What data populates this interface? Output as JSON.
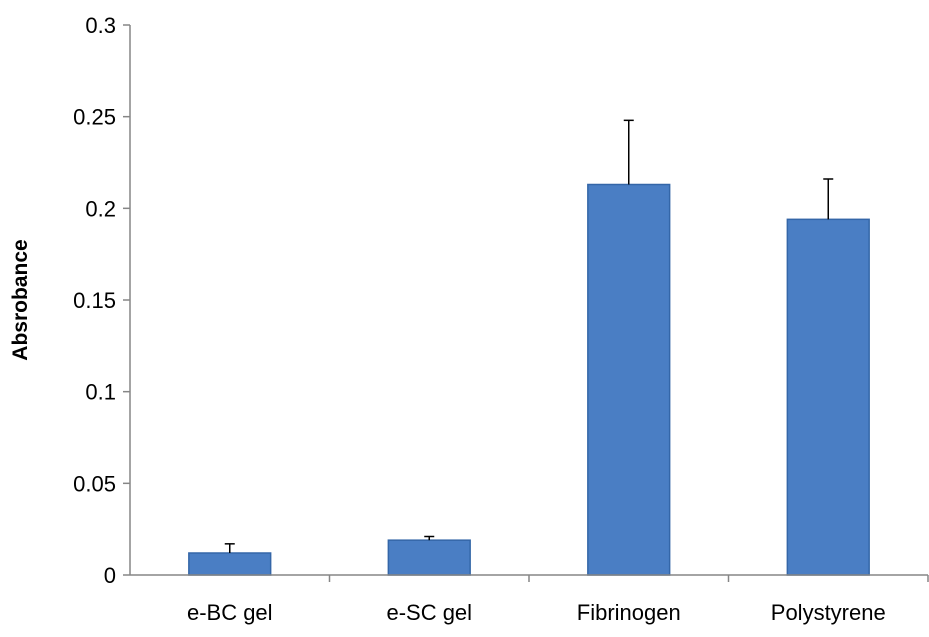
{
  "colors": {
    "bar_fill": "#4A7EC4",
    "bar_stroke": "#3466A8",
    "axis": "#868686",
    "error_bar": "#000000"
  },
  "chart_data": {
    "type": "bar",
    "title": "",
    "xlabel": "",
    "ylabel": "Absrobance",
    "ylim": [
      0,
      0.3
    ],
    "yticks": [
      0,
      0.05,
      0.1,
      0.15,
      0.2,
      0.25,
      0.3
    ],
    "ytick_labels": [
      "0",
      "0.05",
      "0.1",
      "0.15",
      "0.2",
      "0.25",
      "0.3"
    ],
    "grid": false,
    "legend": "none",
    "categories": [
      "e-BC gel",
      "e-SC gel",
      "Fibrinogen",
      "Polystyrene"
    ],
    "values": [
      0.012,
      0.019,
      0.213,
      0.194
    ],
    "error_plus": [
      0.005,
      0.002,
      0.035,
      0.022
    ]
  }
}
